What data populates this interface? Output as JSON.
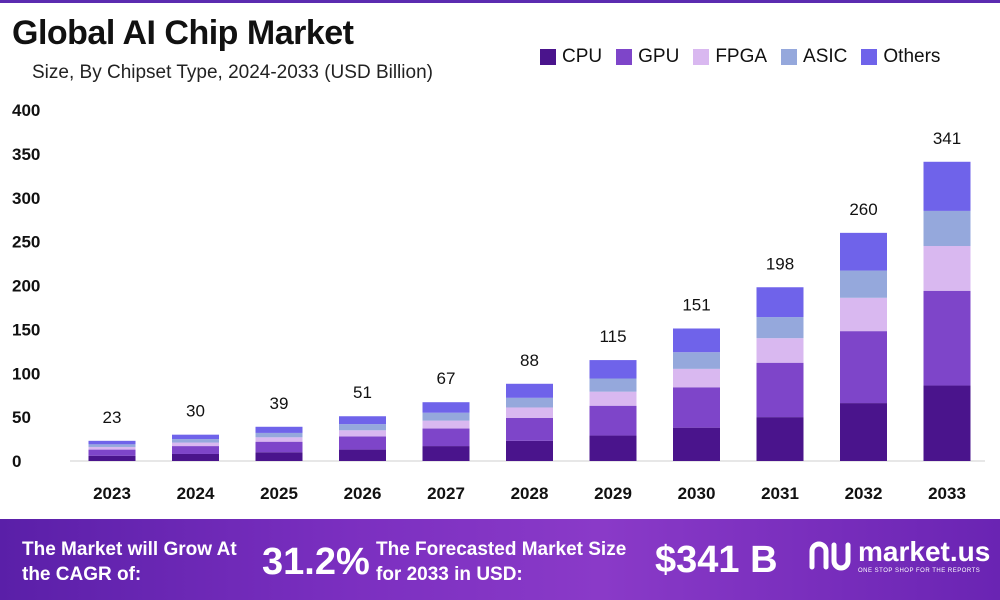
{
  "title": "Global AI Chip Market",
  "subtitle": "Size, By Chipset Type, 2024-2033 (USD Billion)",
  "legend": [
    {
      "label": "CPU",
      "color": "#4a148c"
    },
    {
      "label": "GPU",
      "color": "#7e45c9"
    },
    {
      "label": "FPGA",
      "color": "#d9b8f0"
    },
    {
      "label": "ASIC",
      "color": "#95a8dc"
    },
    {
      "label": "Others",
      "color": "#6f63ea"
    }
  ],
  "chart_data": {
    "type": "bar",
    "stacked": true,
    "categories": [
      "2023",
      "2024",
      "2025",
      "2026",
      "2027",
      "2028",
      "2029",
      "2030",
      "2031",
      "2032",
      "2033"
    ],
    "totals": [
      23,
      30,
      39,
      51,
      67,
      88,
      115,
      151,
      198,
      260,
      341
    ],
    "total_labels": [
      "23",
      "30",
      "39",
      "51",
      "67",
      "88",
      "115",
      "151",
      "198",
      "260",
      "341"
    ],
    "series": [
      {
        "name": "CPU",
        "color": "#4a148c",
        "values": [
          6,
          8,
          10,
          13,
          17,
          23,
          29,
          38,
          50,
          66,
          86
        ]
      },
      {
        "name": "GPU",
        "color": "#7e45c9",
        "values": [
          7,
          9,
          12,
          15,
          20,
          26,
          34,
          46,
          62,
          82,
          108
        ]
      },
      {
        "name": "FPGA",
        "color": "#d9b8f0",
        "values": [
          3,
          4,
          5,
          7,
          9,
          12,
          16,
          21,
          28,
          38,
          51
        ]
      },
      {
        "name": "ASIC",
        "color": "#95a8dc",
        "values": [
          3,
          4,
          5,
          7,
          9,
          11,
          15,
          19,
          24,
          31,
          40
        ]
      },
      {
        "name": "Others",
        "color": "#6f63ea",
        "values": [
          4,
          5,
          7,
          9,
          12,
          16,
          21,
          27,
          34,
          43,
          56
        ]
      }
    ],
    "yticks": [
      "0",
      "50",
      "100",
      "150",
      "200",
      "250",
      "300",
      "350",
      "400"
    ],
    "ylim": [
      0,
      400
    ],
    "grid": false
  },
  "footer": {
    "cagr_text": "The Market will Grow At the CAGR of:",
    "cagr_value": "31.2%",
    "size_text": "The Forecasted Market Size for 2033 in USD:",
    "size_value": "$341 B",
    "brand": "market.us",
    "tagline": "ONE STOP SHOP FOR THE REPORTS"
  }
}
